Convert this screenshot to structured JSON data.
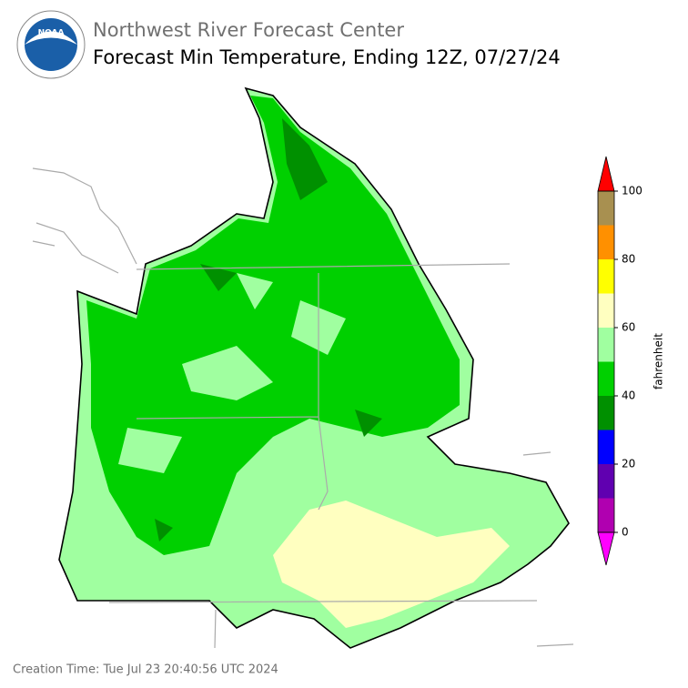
{
  "header": {
    "title": "Northwest River Forecast Center",
    "subtitle": "Forecast Min Temperature, Ending 12Z, 07/27/24"
  },
  "colorbar": {
    "label": "fahrenheit",
    "bounds": [
      0,
      10,
      20,
      30,
      40,
      50,
      60,
      70,
      80,
      90,
      100
    ],
    "colors": [
      "#b000b0",
      "#6000b0",
      "#0000ff",
      "#009000",
      "#00d000",
      "#a0ffa0",
      "#ffffc0",
      "#ffff00",
      "#ff9000",
      "#a89050"
    ],
    "under_color": "#ff00ff",
    "over_color": "#ff0000",
    "ticks": [
      0,
      20,
      40,
      60,
      80,
      100
    ]
  },
  "footer": {
    "creation_time": "Creation Time: Tue Jul 23 20:40:56 UTC 2024"
  }
}
